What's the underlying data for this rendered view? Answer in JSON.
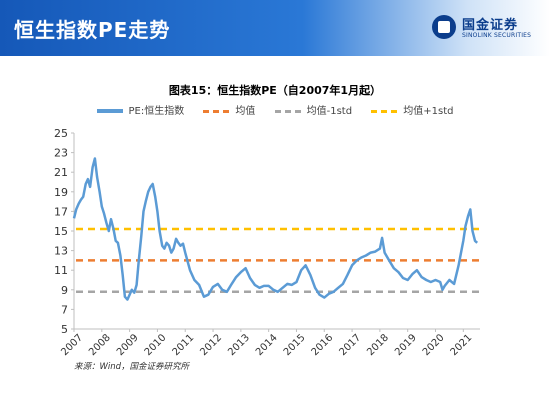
{
  "header": {
    "title": "恒生指数PE走势",
    "logo_cn": "国金证券",
    "logo_en": "SINOLINK SECURITIES"
  },
  "source": "来源：Wind，国金证券研究所",
  "chart_data": {
    "type": "line",
    "title": "图表15：恒生指数PE（自2007年1月起）",
    "ylim": [
      5,
      25
    ],
    "yticks": [
      5,
      7,
      9,
      11,
      13,
      15,
      17,
      19,
      21,
      23,
      25
    ],
    "xlim": [
      2007.0,
      2021.6
    ],
    "xticks": [
      2007,
      2008,
      2009,
      2010,
      2011,
      2012,
      2013,
      2014,
      2015,
      2016,
      2017,
      2018,
      2019,
      2020,
      2021
    ],
    "grid": false,
    "legend_position": "top",
    "series": [
      {
        "name": "PE:恒生指数",
        "kind": "line",
        "color": "#5b9bd5",
        "x": [
          2007.0,
          2007.08,
          2007.17,
          2007.25,
          2007.33,
          2007.42,
          2007.5,
          2007.58,
          2007.67,
          2007.75,
          2007.83,
          2007.92,
          2008.0,
          2008.08,
          2008.17,
          2008.25,
          2008.33,
          2008.42,
          2008.5,
          2008.58,
          2008.67,
          2008.75,
          2008.83,
          2008.92,
          2009.0,
          2009.08,
          2009.17,
          2009.25,
          2009.33,
          2009.42,
          2009.5,
          2009.58,
          2009.67,
          2009.75,
          2009.83,
          2009.92,
          2010.0,
          2010.08,
          2010.17,
          2010.25,
          2010.33,
          2010.42,
          2010.5,
          2010.58,
          2010.67,
          2010.75,
          2010.83,
          2010.92,
          2011.0,
          2011.17,
          2011.33,
          2011.5,
          2011.67,
          2011.83,
          2012.0,
          2012.17,
          2012.33,
          2012.5,
          2012.67,
          2012.83,
          2013.0,
          2013.17,
          2013.33,
          2013.5,
          2013.67,
          2013.83,
          2014.0,
          2014.17,
          2014.33,
          2014.5,
          2014.67,
          2014.83,
          2015.0,
          2015.17,
          2015.33,
          2015.5,
          2015.67,
          2015.83,
          2016.0,
          2016.17,
          2016.33,
          2016.5,
          2016.67,
          2016.83,
          2017.0,
          2017.17,
          2017.33,
          2017.5,
          2017.67,
          2017.83,
          2018.0,
          2018.08,
          2018.17,
          2018.33,
          2018.5,
          2018.67,
          2018.83,
          2019.0,
          2019.17,
          2019.33,
          2019.5,
          2019.67,
          2019.83,
          2020.0,
          2020.17,
          2020.25,
          2020.33,
          2020.5,
          2020.67,
          2020.83,
          2021.0,
          2021.08,
          2021.17,
          2021.25,
          2021.33,
          2021.42,
          2021.5
        ],
        "y": [
          16.3,
          17.2,
          17.8,
          18.2,
          18.5,
          19.8,
          20.3,
          19.5,
          21.5,
          22.4,
          20.5,
          19.0,
          17.5,
          16.8,
          15.8,
          15.0,
          16.2,
          15.2,
          14.0,
          13.8,
          12.5,
          10.5,
          8.3,
          8.0,
          8.5,
          9.0,
          8.7,
          9.5,
          12.0,
          14.5,
          17.0,
          18.0,
          19.0,
          19.5,
          19.8,
          18.5,
          17.0,
          15.0,
          13.5,
          13.2,
          13.8,
          13.5,
          12.8,
          13.2,
          14.2,
          13.8,
          13.5,
          13.7,
          12.8,
          11.0,
          10.0,
          9.5,
          8.3,
          8.5,
          9.3,
          9.6,
          9.0,
          8.8,
          9.6,
          10.3,
          10.8,
          11.2,
          10.2,
          9.5,
          9.2,
          9.4,
          9.4,
          9.0,
          8.8,
          9.2,
          9.6,
          9.5,
          9.8,
          11.0,
          11.5,
          10.5,
          9.2,
          8.5,
          8.2,
          8.6,
          8.8,
          9.2,
          9.6,
          10.5,
          11.5,
          12.0,
          12.3,
          12.5,
          12.8,
          12.9,
          13.2,
          14.3,
          12.8,
          12.0,
          11.2,
          10.8,
          10.2,
          10.0,
          10.6,
          11.0,
          10.3,
          10.0,
          9.8,
          10.0,
          9.8,
          9.0,
          9.4,
          10.0,
          9.6,
          11.5,
          14.0,
          15.5,
          16.5,
          17.2,
          15.0,
          14.0,
          13.8
        ]
      },
      {
        "name": "均值",
        "kind": "hline",
        "color": "#ed7d31",
        "value": 12.0
      },
      {
        "name": "均值-1std",
        "kind": "hline",
        "color": "#a5a5a5",
        "value": 8.8
      },
      {
        "name": "均值+1std",
        "kind": "hline",
        "color": "#ffc000",
        "value": 15.2
      }
    ]
  }
}
